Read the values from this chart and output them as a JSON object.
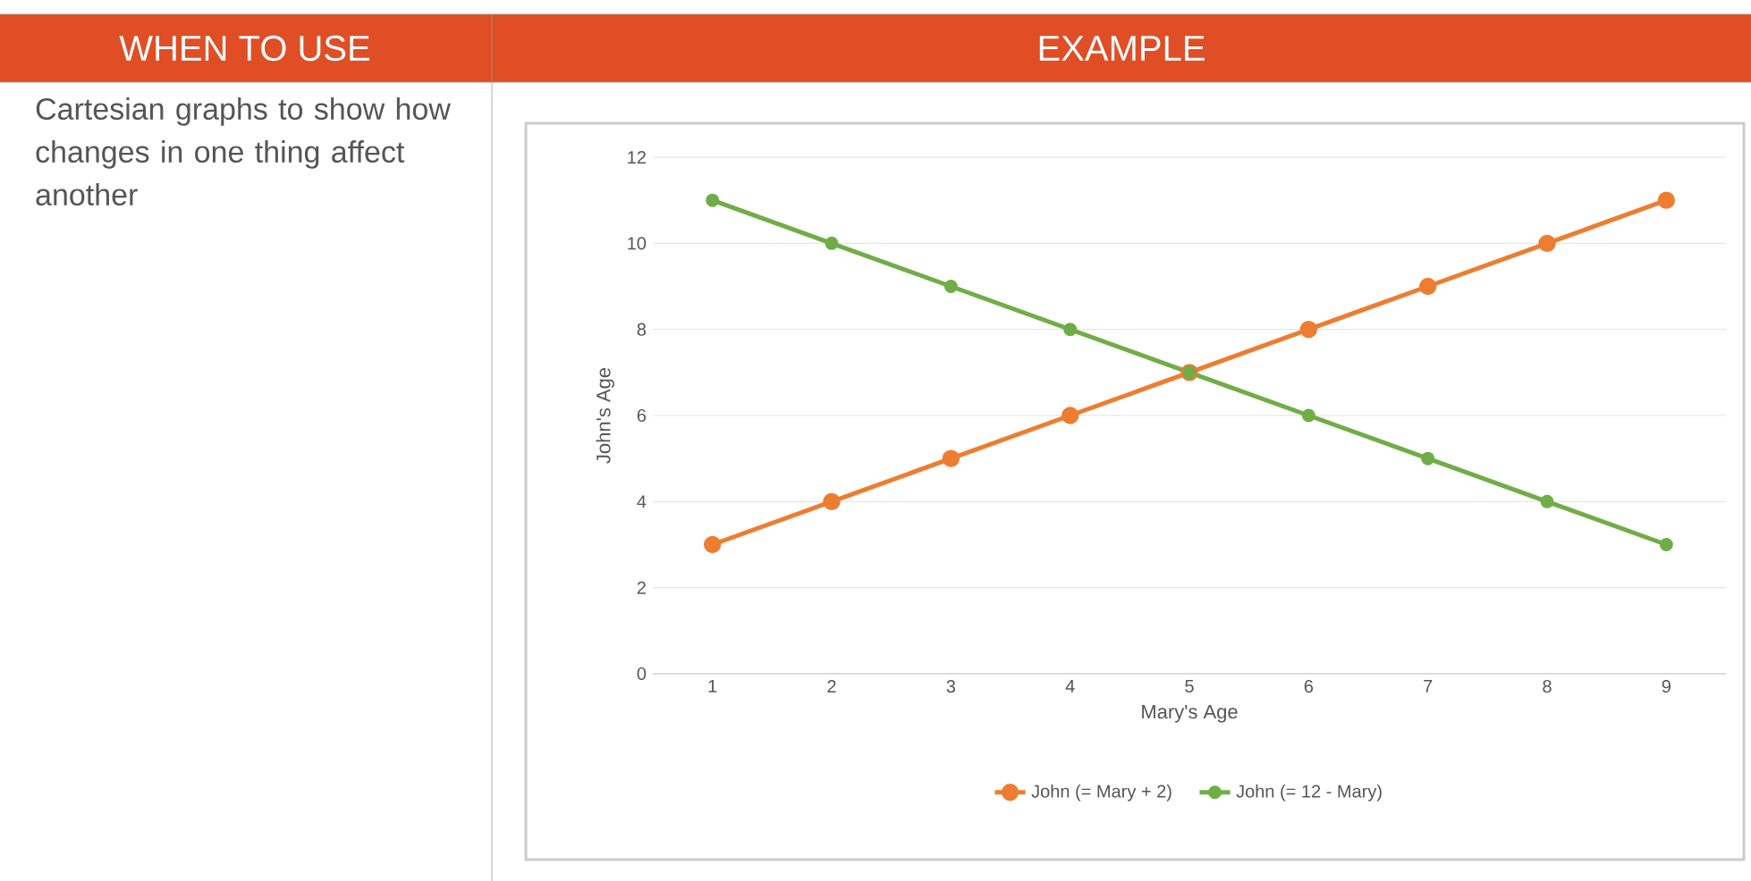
{
  "chart_data": {
    "type": "line",
    "annotations": [
      "WHEN TO USE",
      "EXAMPLE",
      "Cartesian graphs to show how changes in one thing affect another"
    ],
    "xlabel": "Mary's Age",
    "ylabel": "John's Age",
    "categories": [
      "1",
      "2",
      "3",
      "4",
      "5",
      "6",
      "7",
      "8",
      "9"
    ],
    "series": [
      {
        "name": "John (= Mary + 2)",
        "color": "#ed7d31",
        "values": [
          3,
          4,
          5,
          6,
          7,
          8,
          9,
          10,
          11
        ]
      },
      {
        "name": "John (= 12 - Mary)",
        "color": "#70ad47",
        "values": [
          11,
          10,
          9,
          8,
          7,
          6,
          5,
          4,
          3
        ]
      }
    ],
    "ylim": [
      0,
      12
    ],
    "yticks": [
      0,
      2,
      4,
      6,
      8,
      10,
      12
    ],
    "grid": "y",
    "legend": "bottom",
    "marker": "circle",
    "line_style": "solid"
  }
}
